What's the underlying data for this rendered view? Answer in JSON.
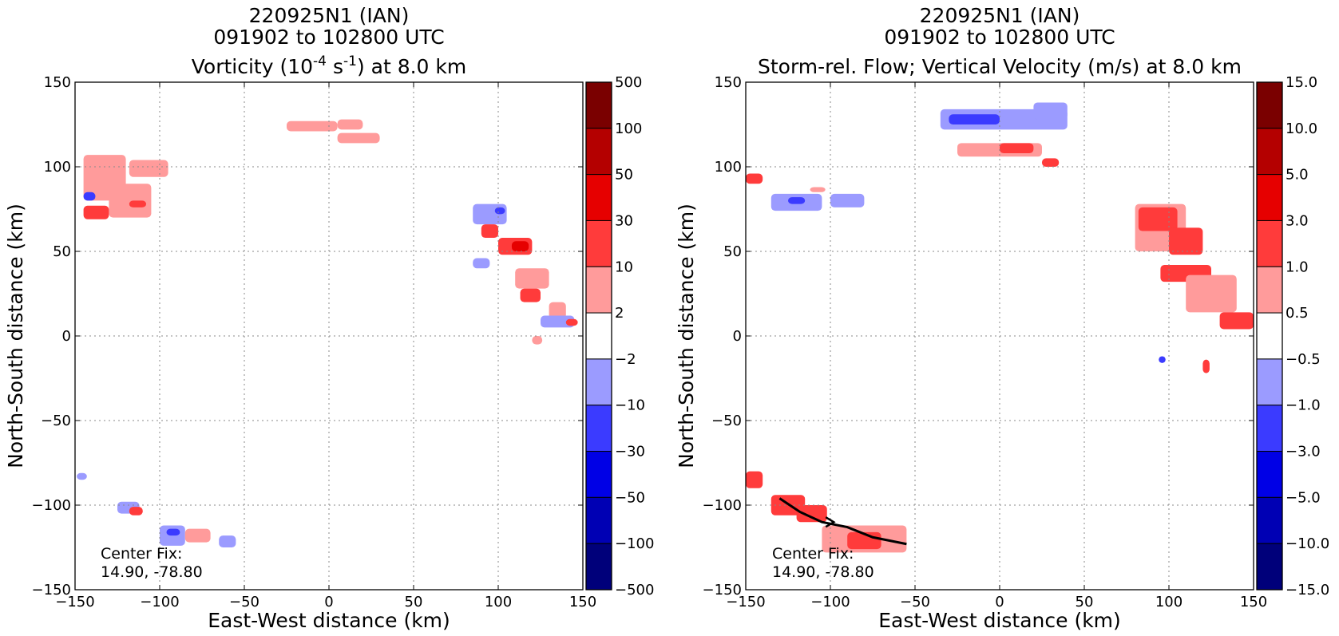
{
  "chart_data": [
    {
      "type": "heatmap",
      "id": "vorticity",
      "title_lines": [
        "220925N1 (IAN)",
        "091902 to 102800 UTC"
      ],
      "title_field": {
        "pre": "Vorticity (10",
        "sup1": "-4",
        "mid": " s",
        "sup2": "-1",
        "post": ") at 8.0 km"
      },
      "xlabel": "East-West distance (km)",
      "ylabel": "North-South distance (km)",
      "xlim": [
        -150,
        150
      ],
      "ylim": [
        -150,
        150
      ],
      "xticks": [
        -150,
        -100,
        -50,
        0,
        50,
        100,
        150
      ],
      "yticks": [
        -150,
        -100,
        -50,
        0,
        50,
        100,
        150
      ],
      "xtick_labels": [
        "−150",
        "−100",
        "−50",
        "0",
        "50",
        "100",
        "150"
      ],
      "ytick_labels": [
        "−150",
        "−100",
        "−50",
        "0",
        "50",
        "100",
        "150"
      ],
      "grid": true,
      "colorbar": {
        "labels": [
          "500",
          "100",
          "50",
          "30",
          "10",
          "2",
          "−2",
          "−10",
          "−30",
          "−50",
          "−100",
          "−500"
        ],
        "colors": [
          "#7a0000",
          "#b40000",
          "#e60000",
          "#ff3b3b",
          "#ff9b9b",
          "#ffffff",
          "#9b9bff",
          "#3b3bff",
          "#0000e6",
          "#0000b4",
          "#00007a"
        ]
      },
      "annotation": {
        "line1": "Center Fix:",
        "line2": "14.90, -78.80"
      },
      "regions": [
        {
          "x": [
            5,
            20
          ],
          "y": [
            122,
            128
          ],
          "level": 2
        },
        {
          "x": [
            -25,
            5
          ],
          "y": [
            121,
            127
          ],
          "level": 2
        },
        {
          "x": [
            5,
            30
          ],
          "y": [
            114,
            120
          ],
          "level": 2
        },
        {
          "x": [
            -145,
            -120
          ],
          "y": [
            80,
            107
          ],
          "level": 2
        },
        {
          "x": [
            -130,
            -105
          ],
          "y": [
            70,
            90
          ],
          "level": 2
        },
        {
          "x": [
            -145,
            -130
          ],
          "y": [
            69,
            77
          ],
          "level": 10
        },
        {
          "x": [
            -145,
            -138
          ],
          "y": [
            80,
            85
          ],
          "level": -10
        },
        {
          "x": [
            -118,
            -95
          ],
          "y": [
            94,
            104
          ],
          "level": 2
        },
        {
          "x": [
            -118,
            -108
          ],
          "y": [
            76,
            80
          ],
          "level": 10
        },
        {
          "x": [
            85,
            105
          ],
          "y": [
            66,
            78
          ],
          "level": -2
        },
        {
          "x": [
            98,
            104
          ],
          "y": [
            72,
            76
          ],
          "level": -10
        },
        {
          "x": [
            90,
            100
          ],
          "y": [
            58,
            66
          ],
          "level": 10
        },
        {
          "x": [
            100,
            120
          ],
          "y": [
            48,
            58
          ],
          "level": 10
        },
        {
          "x": [
            108,
            118
          ],
          "y": [
            50,
            56
          ],
          "level": 30
        },
        {
          "x": [
            85,
            95
          ],
          "y": [
            40,
            46
          ],
          "level": -2
        },
        {
          "x": [
            110,
            130
          ],
          "y": [
            28,
            40
          ],
          "level": 2
        },
        {
          "x": [
            113,
            125
          ],
          "y": [
            20,
            28
          ],
          "level": 10
        },
        {
          "x": [
            130,
            140
          ],
          "y": [
            10,
            20
          ],
          "level": 2
        },
        {
          "x": [
            125,
            145
          ],
          "y": [
            5,
            12
          ],
          "level": -2
        },
        {
          "x": [
            140,
            147
          ],
          "y": [
            6,
            10
          ],
          "level": 10
        },
        {
          "x": [
            120,
            126
          ],
          "y": [
            -5,
            0
          ],
          "level": 2
        },
        {
          "x": [
            -149,
            -143
          ],
          "y": [
            -85,
            -81
          ],
          "level": -2
        },
        {
          "x": [
            -125,
            -112
          ],
          "y": [
            -105,
            -98
          ],
          "level": -2
        },
        {
          "x": [
            -118,
            -110
          ],
          "y": [
            -106,
            -101
          ],
          "level": 10
        },
        {
          "x": [
            -100,
            -85
          ],
          "y": [
            -124,
            -112
          ],
          "level": -2
        },
        {
          "x": [
            -96,
            -88
          ],
          "y": [
            -118,
            -114
          ],
          "level": -10
        },
        {
          "x": [
            -85,
            -70
          ],
          "y": [
            -122,
            -114
          ],
          "level": 2
        },
        {
          "x": [
            -65,
            -55
          ],
          "y": [
            -125,
            -118
          ],
          "level": -2
        }
      ]
    },
    {
      "type": "heatmap",
      "id": "vertical-velocity",
      "title_lines": [
        "220925N1 (IAN)",
        "091902 to 102800 UTC"
      ],
      "title_field": {
        "pre": "Storm-rel. Flow; Vertical Velocity (m/s) at 8.0 km",
        "sup1": "",
        "mid": "",
        "sup2": "",
        "post": ""
      },
      "xlabel": "East-West distance (km)",
      "ylabel": "North-South distance (km)",
      "xlim": [
        -150,
        150
      ],
      "ylim": [
        -150,
        150
      ],
      "xticks": [
        -150,
        -100,
        -50,
        0,
        50,
        100,
        150
      ],
      "yticks": [
        -150,
        -100,
        -50,
        0,
        50,
        100,
        150
      ],
      "xtick_labels": [
        "−150",
        "−100",
        "−50",
        "0",
        "50",
        "100",
        "150"
      ],
      "ytick_labels": [
        "−150",
        "−100",
        "−50",
        "0",
        "50",
        "100",
        "150"
      ],
      "grid": true,
      "colorbar": {
        "labels": [
          "15.0",
          "10.0",
          "5.0",
          "3.0",
          "1.0",
          "0.5",
          "−0.5",
          "−1.0",
          "−3.0",
          "−5.0",
          "−10.0",
          "−15.0"
        ],
        "colors": [
          "#7a0000",
          "#b40000",
          "#e60000",
          "#ff3b3b",
          "#ff9b9b",
          "#ffffff",
          "#9b9bff",
          "#3b3bff",
          "#0000e6",
          "#0000b4",
          "#00007a"
        ]
      },
      "annotation": {
        "line1": "Center Fix:",
        "line2": "14.90, -78.80"
      },
      "flow_line": {
        "x": [
          -130,
          -118,
          -105,
          -90,
          -75,
          -55
        ],
        "y": [
          -96,
          -104,
          -110,
          -113,
          -119,
          -123
        ]
      },
      "regions": [
        {
          "x": [
            -35,
            40
          ],
          "y": [
            122,
            134
          ],
          "level": -1
        },
        {
          "x": [
            -30,
            0
          ],
          "y": [
            125,
            131
          ],
          "level": -3
        },
        {
          "x": [
            20,
            40
          ],
          "y": [
            128,
            138
          ],
          "level": -1
        },
        {
          "x": [
            -25,
            25
          ],
          "y": [
            106,
            114
          ],
          "level": 1
        },
        {
          "x": [
            0,
            20
          ],
          "y": [
            108,
            114
          ],
          "level": 3
        },
        {
          "x": [
            25,
            35
          ],
          "y": [
            100,
            105
          ],
          "level": 3
        },
        {
          "x": [
            -150,
            -140
          ],
          "y": [
            90,
            96
          ],
          "level": 3
        },
        {
          "x": [
            -135,
            -105
          ],
          "y": [
            74,
            84
          ],
          "level": -1
        },
        {
          "x": [
            -125,
            -115
          ],
          "y": [
            78,
            82
          ],
          "level": -3
        },
        {
          "x": [
            -100,
            -80
          ],
          "y": [
            76,
            84
          ],
          "level": -1
        },
        {
          "x": [
            -112,
            -103
          ],
          "y": [
            85,
            88
          ],
          "level": 1
        },
        {
          "x": [
            80,
            110
          ],
          "y": [
            50,
            78
          ],
          "level": 1
        },
        {
          "x": [
            82,
            105
          ],
          "y": [
            62,
            76
          ],
          "level": 3
        },
        {
          "x": [
            100,
            120
          ],
          "y": [
            48,
            64
          ],
          "level": 3
        },
        {
          "x": [
            95,
            125
          ],
          "y": [
            32,
            42
          ],
          "level": 3
        },
        {
          "x": [
            110,
            140
          ],
          "y": [
            14,
            36
          ],
          "level": 1
        },
        {
          "x": [
            130,
            150
          ],
          "y": [
            4,
            14
          ],
          "level": 3
        },
        {
          "x": [
            120,
            124
          ],
          "y": [
            -22,
            -14
          ],
          "level": 3
        },
        {
          "x": [
            94,
            98
          ],
          "y": [
            -16,
            -12
          ],
          "level": -3
        },
        {
          "x": [
            -150,
            -140
          ],
          "y": [
            -90,
            -80
          ],
          "level": 3
        },
        {
          "x": [
            -135,
            -115
          ],
          "y": [
            -106,
            -94
          ],
          "level": 3
        },
        {
          "x": [
            -120,
            -102
          ],
          "y": [
            -110,
            -100
          ],
          "level": 3
        },
        {
          "x": [
            -105,
            -55
          ],
          "y": [
            -128,
            -112
          ],
          "level": 1
        },
        {
          "x": [
            -90,
            -70
          ],
          "y": [
            -126,
            -116
          ],
          "level": 3
        }
      ]
    }
  ]
}
